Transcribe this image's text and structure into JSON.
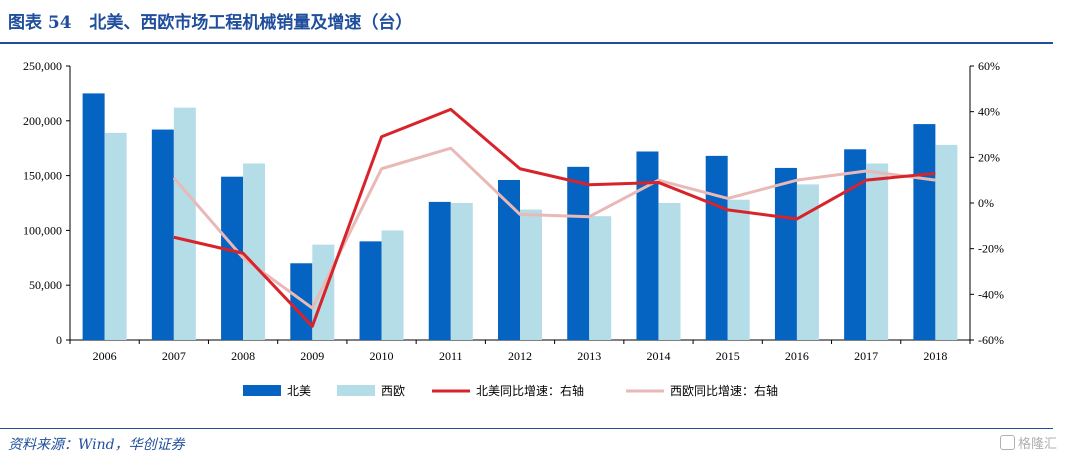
{
  "figure": {
    "title": "图表 54   北美、西欧市场工程机械销量及增速（台）",
    "source": "资料来源：Wind，华创证券",
    "watermark": "格隆汇"
  },
  "colors": {
    "na_bar": "#0563c1",
    "we_bar": "#b4dde8",
    "na_line": "#d9232a",
    "we_line": "#e9b9b7",
    "accent": "#1f4e9c"
  },
  "chart_data": {
    "type": "bar",
    "categories": [
      "2006",
      "2007",
      "2008",
      "2009",
      "2010",
      "2011",
      "2012",
      "2013",
      "2014",
      "2015",
      "2016",
      "2017",
      "2018"
    ],
    "series": [
      {
        "name": "北美",
        "type": "bar",
        "axis": "left",
        "values": [
          225000,
          192000,
          149000,
          70000,
          90000,
          126000,
          146000,
          158000,
          172000,
          168000,
          157000,
          174000,
          197000
        ]
      },
      {
        "name": "西欧",
        "type": "bar",
        "axis": "left",
        "values": [
          189000,
          212000,
          161000,
          87000,
          100000,
          125000,
          119000,
          113000,
          125000,
          128000,
          142000,
          161000,
          178000
        ]
      },
      {
        "name": "北美同比增速：右轴",
        "type": "line",
        "axis": "right",
        "values": [
          null,
          -15,
          -22,
          -54,
          29,
          41,
          15,
          8,
          9,
          -3,
          -7,
          10,
          13
        ]
      },
      {
        "name": "西欧同比增速：右轴",
        "type": "line",
        "axis": "right",
        "values": [
          null,
          11,
          -24,
          -46,
          15,
          24,
          -5,
          -6,
          10,
          2,
          10,
          14,
          10
        ]
      }
    ],
    "left_axis": {
      "ylim": [
        0,
        250000
      ],
      "ticks": [
        "0",
        "50,000",
        "100,000",
        "150,000",
        "200,000",
        "250,000"
      ]
    },
    "right_axis": {
      "ylim": [
        -60,
        60
      ],
      "ticks": [
        "-60%",
        "-40%",
        "-20%",
        "0%",
        "20%",
        "40%",
        "60%"
      ]
    },
    "grid": false,
    "legend_position": "bottom"
  }
}
